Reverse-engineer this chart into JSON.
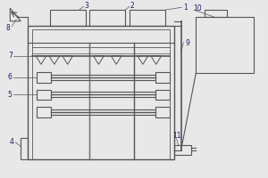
{
  "bg_color": "#e8e8e8",
  "line_color": "#555555",
  "label_color": "#1a1a6e",
  "figsize": [
    3.0,
    2.0
  ],
  "dpi": 100
}
